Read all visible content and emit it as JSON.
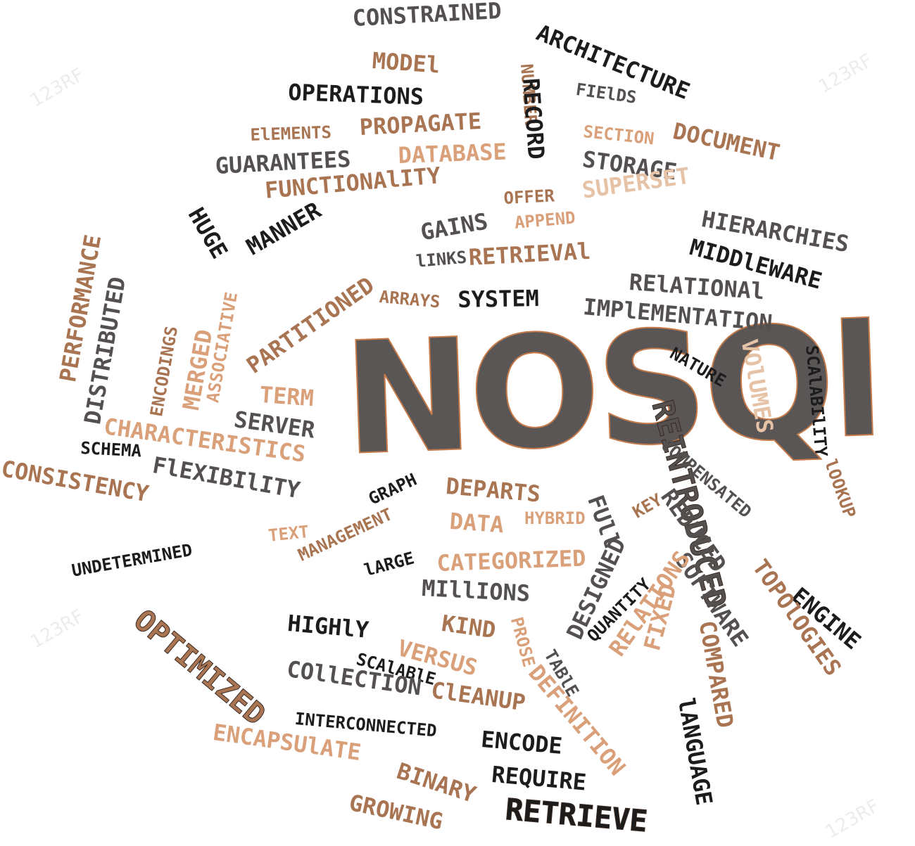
{
  "title": "NOSQl",
  "colors": {
    "dark": "#1c1c1c",
    "gray": "#545050",
    "tan": "#d9a07a",
    "brown": "#a87452",
    "light": "#e6c2a6",
    "title_fill": "#5b5656",
    "title_stroke": "#c47a4a"
  },
  "watermark": "123RF",
  "words": [
    "CONSTRAINED",
    "ARCHITECTURE",
    "MODEl",
    "NUMBER",
    "RECORD",
    "OPERATIONS",
    "FIElDS",
    "ElEMENTS",
    "PROPAGATE",
    "SECTION",
    "DOCUMENT",
    "GUARANTEES",
    "DATABASE",
    "STORAGE",
    "FUNCTIONAlITY",
    "OFFER",
    "SUPERSET",
    "HIERARCHIES",
    "HUGE",
    "GAINS",
    "APPEND",
    "MIDDlEWARE",
    "MANNER",
    "PARTITIONED",
    "lINKS",
    "RETRIEVAl",
    "RElATIONAl",
    "PERFORMANCE",
    "DISTRIBUTED",
    "ARRAYS",
    "SYSTEM",
    "IMPlEMENTATION",
    "ENCODINGS",
    "MERGED",
    "ASSOCIATIVE",
    "NATURE",
    "VOlUMES",
    "SCAlABIlITY",
    "TERM",
    "REINTRODUCED",
    "SERVER",
    "COMPENSATED",
    "CHARACTERISTICS",
    "lOOKUP",
    "SCHEMA",
    "FlEXIBIlITY",
    "CONSISTENCY",
    "ENGINE",
    "GRAPH",
    "DEPARTS",
    "FUll",
    "KEY",
    "REDUCED",
    "TOPOlOGIES",
    "UNDETERMINED",
    "TEXT",
    "MANAGEMENT",
    "DATA",
    "HYBRID",
    "lARGE",
    "CATEGORIZED",
    "SOFTWARE",
    "MIllIONS",
    "DESIGNED",
    "QUANTITY",
    "RElATIONS",
    "OPTIMIZED",
    "HIGHlY",
    "KIND",
    "PROSE",
    "COMPARED",
    "VERSUS",
    "TABlE",
    "FIXED",
    "SCAlABlE",
    "COllECTION",
    "ClEANUP",
    "DEFINITION",
    "lANGUAGE",
    "INTERCONNECTED",
    "ENCODE",
    "ENCAPSUlATE",
    "BINARY",
    "REQUIRE",
    "GROWING",
    "RETRIEVE"
  ]
}
